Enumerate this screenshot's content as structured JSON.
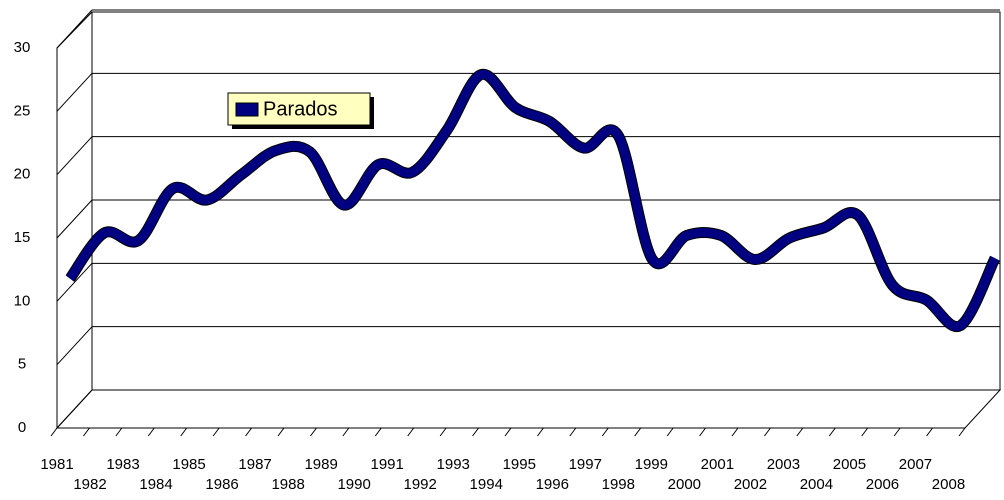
{
  "chart_data": {
    "type": "line",
    "categories": [
      "1981",
      "1982",
      "1983",
      "1984",
      "1985",
      "1986",
      "1987",
      "1988",
      "1989",
      "1990",
      "1991",
      "1992",
      "1993",
      "1994",
      "1995",
      "1996",
      "1997",
      "1998",
      "1999",
      "2000",
      "2001",
      "2002",
      "2003",
      "2004",
      "2005",
      "2006",
      "2007",
      "2008"
    ],
    "series": [
      {
        "name": "Parados",
        "color": "#000080",
        "values": [
          10.3,
          13.9,
          13.3,
          17.4,
          16.5,
          18.5,
          20.4,
          20.3,
          16.1,
          19.3,
          18.7,
          22.0,
          26.4,
          23.8,
          22.7,
          20.6,
          21.6,
          11.8,
          13.7,
          13.7,
          11.8,
          13.5,
          14.3,
          15.3,
          9.8,
          8.6,
          6.6,
          11.9
        ]
      }
    ],
    "ylim": [
      0,
      30
    ],
    "yticks": [
      0,
      5,
      10,
      15,
      20,
      25,
      30
    ],
    "grid": true
  }
}
